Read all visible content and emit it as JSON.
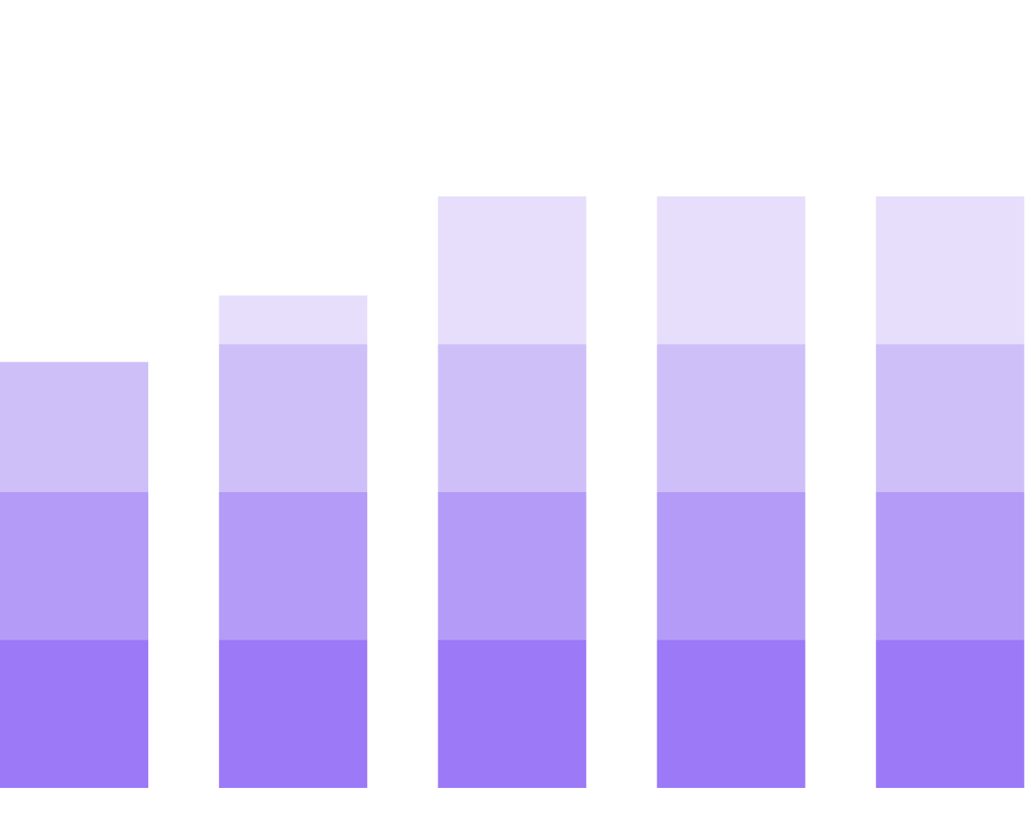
{
  "chart_data": {
    "type": "bar",
    "stacked": true,
    "categories": [
      "",
      "",
      "",
      "",
      ""
    ],
    "series": [
      {
        "values": [
          1,
          1,
          1,
          1,
          1
        ],
        "color": "#9b79f7"
      },
      {
        "values": [
          1,
          1,
          1,
          1,
          1
        ],
        "color": "#b39bf7"
      },
      {
        "values": [
          0.88,
          1,
          1,
          1,
          1
        ],
        "color": "#cfbff9"
      },
      {
        "values": [
          0,
          0.33,
          1,
          1,
          1
        ],
        "color": "#e7defb"
      }
    ],
    "ylim": [
      0,
      4
    ],
    "grid": false,
    "legend": "none",
    "title": "",
    "xlabel": "",
    "ylabel": ""
  }
}
